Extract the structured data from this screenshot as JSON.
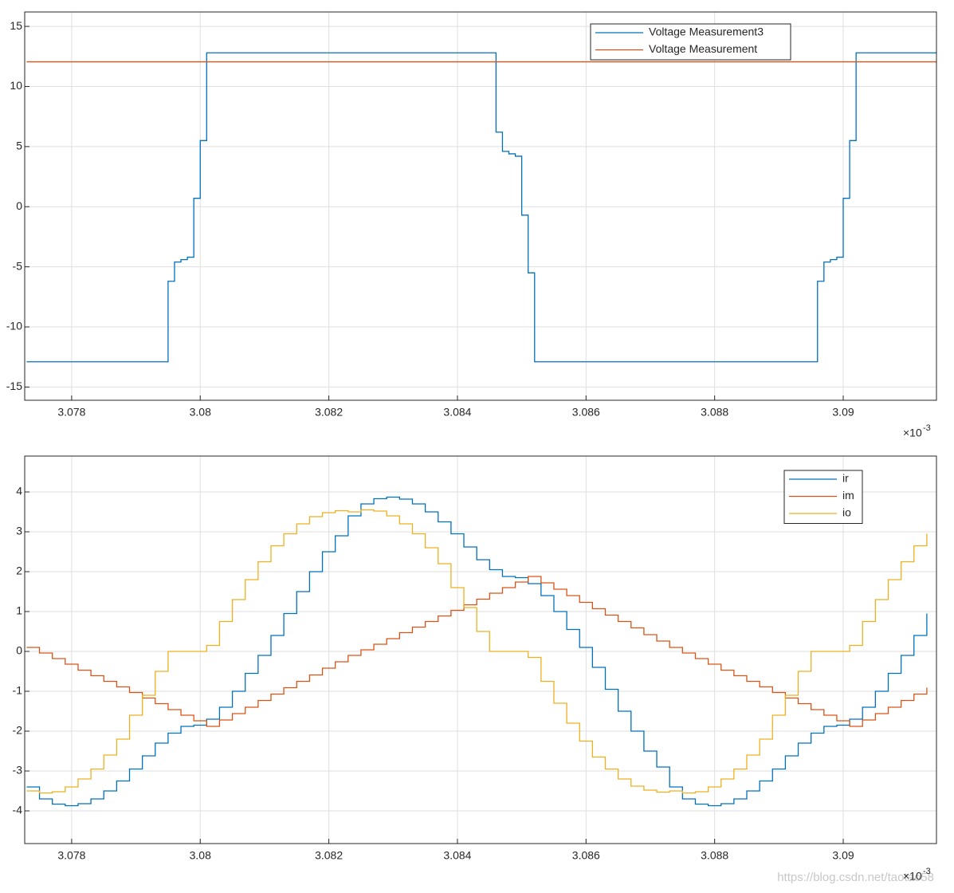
{
  "chart_data": [
    {
      "type": "line",
      "drawstyle": "steps-post",
      "grid": true,
      "legend": "north-east",
      "xlim": [
        3.07727,
        3.09145
      ],
      "xticks": [
        3.078,
        3.08,
        3.082,
        3.084,
        3.086,
        3.088,
        3.09
      ],
      "x_multiplier": "×10",
      "x_exponent": "-3",
      "ylim": [
        -16.1,
        16.2
      ],
      "yticks": [
        -15,
        -10,
        -5,
        0,
        5,
        10,
        15
      ],
      "series": [
        {
          "name": "Voltage Measurement3",
          "color": "#0072bd",
          "x": [
            3.0773,
            3.0795,
            3.0796,
            3.0797,
            3.0798,
            3.0799,
            3.08,
            3.0801,
            3.0846,
            3.0847,
            3.0848,
            3.0849,
            3.085,
            3.0851,
            3.0852,
            3.0896,
            3.0897,
            3.0898,
            3.0899,
            3.09,
            3.0901,
            3.0902,
            3.09145
          ],
          "values": [
            -12.9,
            -6.2,
            -4.6,
            -4.4,
            -4.2,
            0.7,
            5.5,
            12.8,
            6.2,
            4.6,
            4.4,
            4.2,
            -0.7,
            -5.5,
            -12.9,
            -6.2,
            -4.6,
            -4.4,
            -4.2,
            0.7,
            5.5,
            12.8,
            12.8
          ]
        },
        {
          "name": "Voltage Measurement",
          "color": "#d95319",
          "x": [
            3.0773,
            3.09145
          ],
          "values": [
            12.05,
            12.05
          ]
        }
      ]
    },
    {
      "type": "line",
      "drawstyle": "steps-post",
      "grid": true,
      "legend": "north-east",
      "xlim": [
        3.07727,
        3.09145
      ],
      "xticks": [
        3.078,
        3.08,
        3.082,
        3.084,
        3.086,
        3.088,
        3.09
      ],
      "x_multiplier": "×10",
      "x_exponent": "-3",
      "ylim": [
        -4.82,
        4.9
      ],
      "yticks": [
        -4,
        -3,
        -2,
        -1,
        0,
        1,
        2,
        3,
        4
      ],
      "x": [
        3.0773,
        3.0775,
        3.0777,
        3.0779,
        3.0781,
        3.0783,
        3.0785,
        3.0787,
        3.0789,
        3.0791,
        3.0793,
        3.0795,
        3.0797,
        3.0799,
        3.0801,
        3.0803,
        3.0805,
        3.0807,
        3.0809,
        3.0811,
        3.0813,
        3.0815,
        3.0817,
        3.0819,
        3.0821,
        3.0823,
        3.0825,
        3.0827,
        3.0829,
        3.0831,
        3.0833,
        3.0835,
        3.0837,
        3.0839,
        3.0841,
        3.0843,
        3.0845,
        3.0847,
        3.0849,
        3.0851,
        3.0853,
        3.0855,
        3.0857,
        3.0859,
        3.0861,
        3.0863,
        3.0865,
        3.0867,
        3.0869,
        3.0871,
        3.0873,
        3.0875,
        3.0877,
        3.0879,
        3.0881,
        3.0883,
        3.0885,
        3.0887,
        3.0889,
        3.0891,
        3.0893,
        3.0895,
        3.0897,
        3.0899,
        3.0901,
        3.0903,
        3.0905,
        3.0907,
        3.0909,
        3.0911,
        3.0913
      ],
      "series": [
        {
          "name": "ir",
          "color": "#0072bd",
          "values": [
            -3.4,
            -3.7,
            -3.83,
            -3.87,
            -3.82,
            -3.7,
            -3.5,
            -3.25,
            -2.95,
            -2.62,
            -2.3,
            -2.05,
            -1.88,
            -1.85,
            -1.7,
            -1.4,
            -1.0,
            -0.55,
            -0.1,
            0.4,
            0.95,
            1.5,
            2.0,
            2.5,
            2.9,
            3.4,
            3.7,
            3.83,
            3.87,
            3.82,
            3.7,
            3.5,
            3.25,
            2.95,
            2.62,
            2.3,
            2.05,
            1.88,
            1.85,
            1.7,
            1.4,
            1.0,
            0.55,
            0.1,
            -0.4,
            -0.95,
            -1.5,
            -2.0,
            -2.5,
            -2.9,
            -3.4,
            -3.7,
            -3.83,
            -3.87,
            -3.82,
            -3.7,
            -3.5,
            -3.25,
            -2.95,
            -2.62,
            -2.3,
            -2.05,
            -1.88,
            -1.85,
            -1.7,
            -1.4,
            -1.0,
            -0.55,
            -0.1,
            0.4,
            0.95
          ]
        },
        {
          "name": "im",
          "color": "#d95319",
          "values": [
            0.1,
            -0.04,
            -0.18,
            -0.32,
            -0.47,
            -0.61,
            -0.75,
            -0.89,
            -1.03,
            -1.17,
            -1.31,
            -1.46,
            -1.6,
            -1.74,
            -1.88,
            -1.72,
            -1.56,
            -1.4,
            -1.23,
            -1.07,
            -0.91,
            -0.75,
            -0.59,
            -0.42,
            -0.26,
            -0.1,
            0.04,
            0.18,
            0.32,
            0.47,
            0.61,
            0.75,
            0.89,
            1.03,
            1.17,
            1.31,
            1.46,
            1.6,
            1.74,
            1.88,
            1.72,
            1.56,
            1.4,
            1.23,
            1.07,
            0.91,
            0.75,
            0.59,
            0.42,
            0.26,
            0.1,
            -0.04,
            -0.18,
            -0.32,
            -0.47,
            -0.61,
            -0.75,
            -0.89,
            -1.03,
            -1.17,
            -1.31,
            -1.46,
            -1.6,
            -1.74,
            -1.88,
            -1.72,
            -1.56,
            -1.4,
            -1.23,
            -1.07,
            -0.91
          ]
        },
        {
          "name": "io",
          "color": "#edb120",
          "values": [
            -3.5,
            -3.55,
            -3.52,
            -3.4,
            -3.2,
            -2.95,
            -2.6,
            -2.2,
            -1.6,
            -1.1,
            -0.5,
            0,
            0,
            0,
            0.15,
            0.75,
            1.3,
            1.8,
            2.25,
            2.65,
            2.95,
            3.2,
            3.38,
            3.48,
            3.53,
            3.5,
            3.55,
            3.52,
            3.4,
            3.2,
            2.95,
            2.6,
            2.2,
            1.6,
            1.1,
            0.5,
            0,
            0,
            0,
            -0.15,
            -0.75,
            -1.3,
            -1.8,
            -2.25,
            -2.65,
            -2.95,
            -3.2,
            -3.38,
            -3.48,
            -3.53,
            -3.5,
            -3.55,
            -3.52,
            -3.4,
            -3.2,
            -2.95,
            -2.6,
            -2.2,
            -1.6,
            -1.1,
            -0.5,
            0,
            0,
            0,
            0.15,
            0.75,
            1.3,
            1.8,
            2.25,
            2.65,
            2.95
          ]
        }
      ]
    }
  ],
  "watermark": "https://blog.csdn.net/taotao58"
}
